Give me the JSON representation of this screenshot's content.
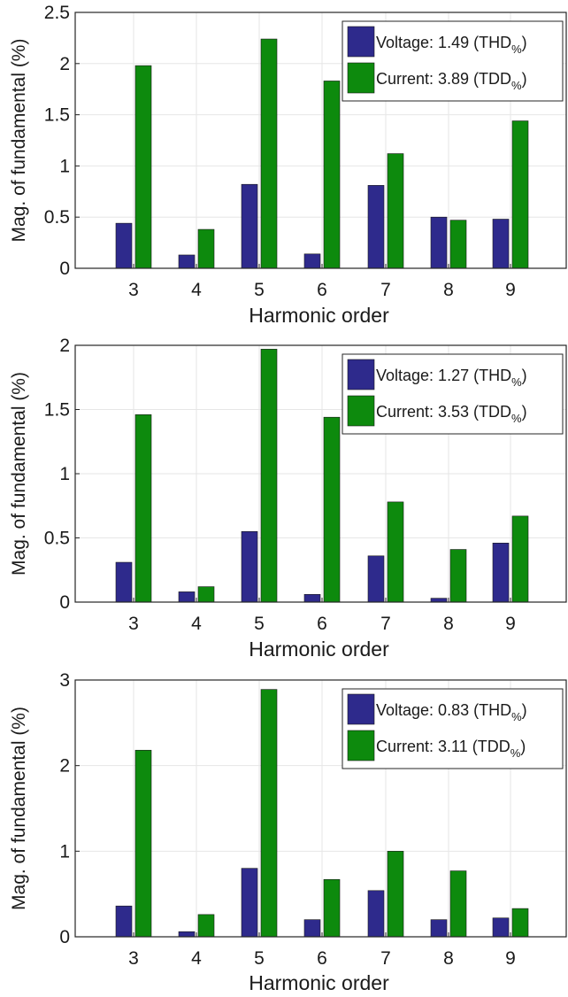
{
  "colors": {
    "voltage": "#2e2a8c",
    "current": "#0d8a0d",
    "grid": "#e6e6e6",
    "axis": "#262626",
    "text": "#1a1a1a"
  },
  "chart_data": [
    {
      "type": "bar",
      "categories": [
        "3",
        "4",
        "5",
        "6",
        "7",
        "8",
        "9"
      ],
      "xlabel": "Harmonic order",
      "ylabel": "Mag. of fundamental (%)",
      "ylim": [
        0,
        2.5
      ],
      "yticks": [
        0,
        0.5,
        1,
        1.5,
        2,
        2.5
      ],
      "ytick_labels": [
        "0",
        "0.5",
        "1",
        "1.5",
        "2",
        "2.5"
      ],
      "grid": "on",
      "legend_location": "top-right",
      "series": [
        {
          "name": "Voltage: 1.49 (THD",
          "name_sub": "%",
          "name_tail": ")",
          "color_key": "voltage",
          "values": [
            0.44,
            0.13,
            0.82,
            0.14,
            0.81,
            0.5,
            0.48
          ]
        },
        {
          "name": "Current: 3.89 (TDD",
          "name_sub": "%",
          "name_tail": ")",
          "color_key": "current",
          "values": [
            1.98,
            0.38,
            2.24,
            1.83,
            1.12,
            0.47,
            1.44
          ]
        }
      ]
    },
    {
      "type": "bar",
      "categories": [
        "3",
        "4",
        "5",
        "6",
        "7",
        "8",
        "9"
      ],
      "xlabel": "Harmonic order",
      "ylabel": "Mag. of fundamental (%)",
      "ylim": [
        0,
        2
      ],
      "yticks": [
        0,
        0.5,
        1,
        1.5,
        2
      ],
      "ytick_labels": [
        "0",
        "0.5",
        "1",
        "1.5",
        "2"
      ],
      "grid": "on",
      "legend_location": "top-right",
      "series": [
        {
          "name": "Voltage: 1.27 (THD",
          "name_sub": "%",
          "name_tail": ")",
          "color_key": "voltage",
          "values": [
            0.31,
            0.08,
            0.55,
            0.06,
            0.36,
            0.03,
            0.46
          ]
        },
        {
          "name": "Current: 3.53 (TDD",
          "name_sub": "%",
          "name_tail": ")",
          "color_key": "current",
          "values": [
            1.46,
            0.12,
            1.97,
            1.44,
            0.78,
            0.41,
            0.67
          ]
        }
      ]
    },
    {
      "type": "bar",
      "categories": [
        "3",
        "4",
        "5",
        "6",
        "7",
        "8",
        "9"
      ],
      "xlabel": "Harmonic order",
      "ylabel": "Mag. of fundamental (%)",
      "ylim": [
        0,
        3
      ],
      "yticks": [
        0,
        1,
        2,
        3
      ],
      "ytick_labels": [
        "0",
        "1",
        "2",
        "3"
      ],
      "grid": "on",
      "legend_location": "top-right",
      "series": [
        {
          "name": "Voltage: 0.83 (THD",
          "name_sub": "%",
          "name_tail": ")",
          "color_key": "voltage",
          "values": [
            0.36,
            0.06,
            0.8,
            0.2,
            0.54,
            0.2,
            0.22
          ]
        },
        {
          "name": "Current: 3.11 (TDD",
          "name_sub": "%",
          "name_tail": ")",
          "color_key": "current",
          "values": [
            2.18,
            0.26,
            2.89,
            0.67,
            1.0,
            0.77,
            0.33
          ]
        }
      ]
    }
  ]
}
